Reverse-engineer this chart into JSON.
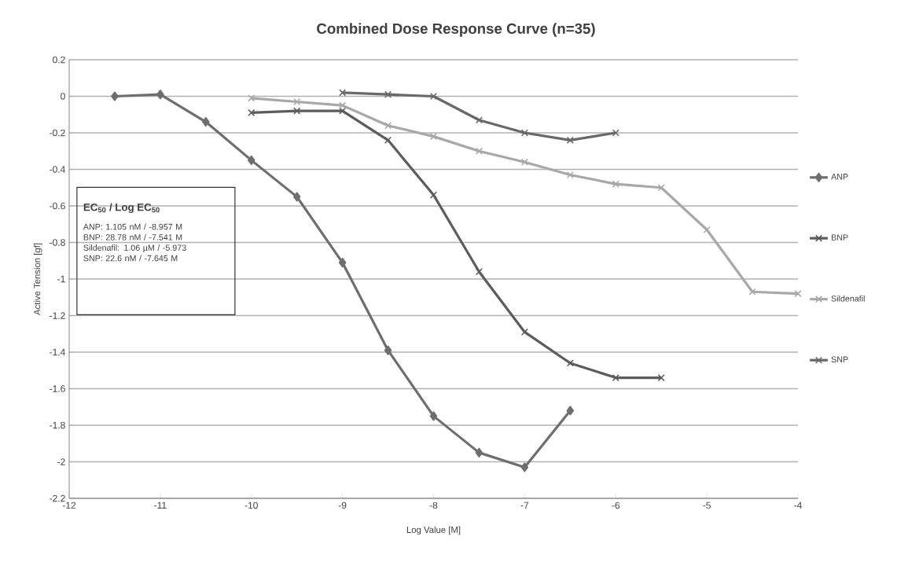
{
  "chart_data": {
    "type": "line",
    "title": "Combined Dose Response Curve (n=35)",
    "xlabel": "Log Value [M]",
    "ylabel": "Active Tension [gf]",
    "annotations": [
      "EC$_{50}$ / Log EC$_{50}$",
      "ANP: 1.105 nM / -8.957 M",
      "BNP: 28.78 nM / -7.541 M",
      "Sildenafil: 1.06 µM / -5.973",
      "SNP: 22.6 nM / -7.645 M"
    ],
    "series": [
      {
        "name": "ANP",
        "color": "#6e6e6e",
        "marker": "diamond",
        "x": [
          -11.5,
          -11,
          -10.5,
          -10,
          -9.5,
          -9,
          -8.5,
          -8,
          -7.5,
          -7,
          -6.5
        ],
        "values": [
          0,
          0.01,
          -0.14,
          -0.35,
          -0.55,
          -0.91,
          -1.39,
          -1.75,
          -1.95,
          -2.03,
          -1.72
        ]
      },
      {
        "name": "BNP",
        "color": "#5c5c5c",
        "marker": "cross",
        "x": [
          -10,
          -9.5,
          -9,
          -8.5,
          -8,
          -7.5,
          -7,
          -6.5,
          -6,
          -5.5
        ],
        "values": [
          -0.09,
          -0.08,
          -0.08,
          -0.24,
          -0.54,
          -0.96,
          -1.29,
          -1.46,
          -1.54,
          -1.54
        ]
      },
      {
        "name": "Sildenafil",
        "color": "#a8a8a8",
        "marker": "cross",
        "x": [
          -10,
          -9.5,
          -9,
          -8.5,
          -8,
          -7.5,
          -7,
          -6.5,
          -6,
          -5.5,
          -5,
          -4.5,
          -4
        ],
        "values": [
          -0.01,
          -0.03,
          -0.05,
          -0.16,
          -0.22,
          -0.3,
          -0.36,
          -0.43,
          -0.48,
          -0.5,
          -0.73,
          -1.07,
          -1.08
        ]
      },
      {
        "name": "SNP",
        "color": "#686868",
        "marker": "cross",
        "x": [
          -9,
          -8.5,
          -8,
          -7.5,
          -7,
          -6.5,
          -6
        ],
        "values": [
          0.02,
          0.01,
          0.0,
          -0.13,
          -0.2,
          -0.24,
          -0.2
        ]
      }
    ],
    "xlim": [
      -12,
      -4
    ],
    "xticks": [
      -12,
      -11,
      -10,
      -9,
      -8,
      -7,
      -6,
      -5,
      -4
    ],
    "ylim": [
      -2.2,
      0.2
    ],
    "yticks": [
      -2.2,
      -2,
      -1.8,
      -1.6,
      -1.4,
      -1.2,
      -1,
      -0.8,
      -0.6,
      -0.4,
      -0.2,
      0,
      0.2
    ],
    "grid": "y",
    "legend": "right",
    "line_style": "solid"
  }
}
